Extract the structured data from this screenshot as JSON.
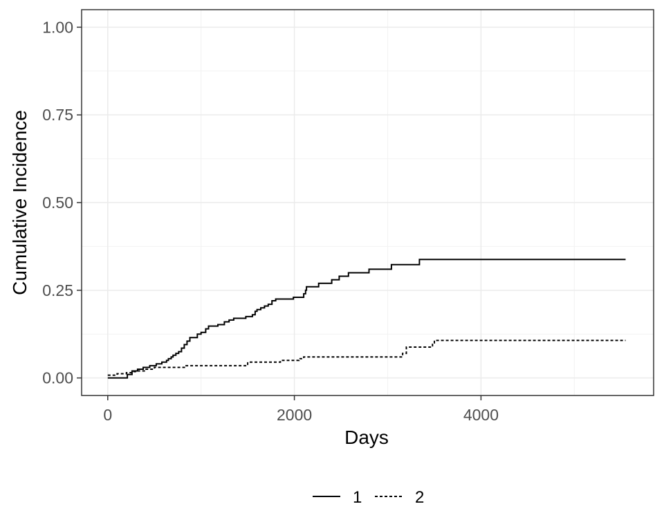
{
  "chart_data": {
    "type": "line",
    "title": "",
    "xlabel": "Days",
    "ylabel": "Cumulative Incidence",
    "xlim": [
      -280,
      5850
    ],
    "ylim": [
      -0.05,
      1.05
    ],
    "x_ticks": [
      0,
      2000,
      4000
    ],
    "x_tick_labels": [
      "0",
      "2000",
      "4000"
    ],
    "x_minor_ticks": [
      1000,
      3000,
      5000
    ],
    "y_ticks": [
      0,
      0.25,
      0.5,
      0.75,
      1.0
    ],
    "y_tick_labels": [
      "0.00",
      "0.25",
      "0.50",
      "0.75",
      "1.00"
    ],
    "y_minor_ticks": [
      0.125,
      0.375,
      0.625,
      0.875
    ],
    "grid": true,
    "legend_position": "bottom",
    "step": true,
    "series": [
      {
        "name": "1",
        "line_style": "solid",
        "color": "#000000",
        "points": [
          [
            0,
            0.0
          ],
          [
            200,
            0.0
          ],
          [
            210,
            0.01
          ],
          [
            260,
            0.02
          ],
          [
            320,
            0.025
          ],
          [
            380,
            0.03
          ],
          [
            450,
            0.035
          ],
          [
            520,
            0.04
          ],
          [
            580,
            0.045
          ],
          [
            630,
            0.05
          ],
          [
            650,
            0.055
          ],
          [
            680,
            0.06
          ],
          [
            700,
            0.065
          ],
          [
            730,
            0.07
          ],
          [
            760,
            0.075
          ],
          [
            790,
            0.085
          ],
          [
            820,
            0.095
          ],
          [
            850,
            0.105
          ],
          [
            880,
            0.115
          ],
          [
            960,
            0.125
          ],
          [
            1000,
            0.13
          ],
          [
            1050,
            0.14
          ],
          [
            1080,
            0.148
          ],
          [
            1180,
            0.152
          ],
          [
            1250,
            0.16
          ],
          [
            1300,
            0.165
          ],
          [
            1350,
            0.17
          ],
          [
            1480,
            0.175
          ],
          [
            1550,
            0.18
          ],
          [
            1580,
            0.19
          ],
          [
            1600,
            0.195
          ],
          [
            1640,
            0.2
          ],
          [
            1680,
            0.205
          ],
          [
            1720,
            0.21
          ],
          [
            1760,
            0.22
          ],
          [
            1800,
            0.225
          ],
          [
            1990,
            0.23
          ],
          [
            2100,
            0.24
          ],
          [
            2120,
            0.25
          ],
          [
            2130,
            0.26
          ],
          [
            2260,
            0.27
          ],
          [
            2400,
            0.28
          ],
          [
            2480,
            0.29
          ],
          [
            2580,
            0.3
          ],
          [
            2800,
            0.31
          ],
          [
            3040,
            0.323
          ],
          [
            3340,
            0.338
          ],
          [
            5550,
            0.338
          ]
        ]
      },
      {
        "name": "2",
        "line_style": "dashed",
        "color": "#000000",
        "points": [
          [
            0,
            0.008
          ],
          [
            100,
            0.012
          ],
          [
            200,
            0.015
          ],
          [
            280,
            0.018
          ],
          [
            320,
            0.02
          ],
          [
            400,
            0.025
          ],
          [
            500,
            0.03
          ],
          [
            840,
            0.035
          ],
          [
            1500,
            0.045
          ],
          [
            1850,
            0.05
          ],
          [
            2050,
            0.055
          ],
          [
            2100,
            0.06
          ],
          [
            3080,
            0.06
          ],
          [
            3160,
            0.07
          ],
          [
            3200,
            0.088
          ],
          [
            3480,
            0.1
          ],
          [
            3500,
            0.107
          ],
          [
            5550,
            0.107
          ]
        ]
      }
    ]
  }
}
